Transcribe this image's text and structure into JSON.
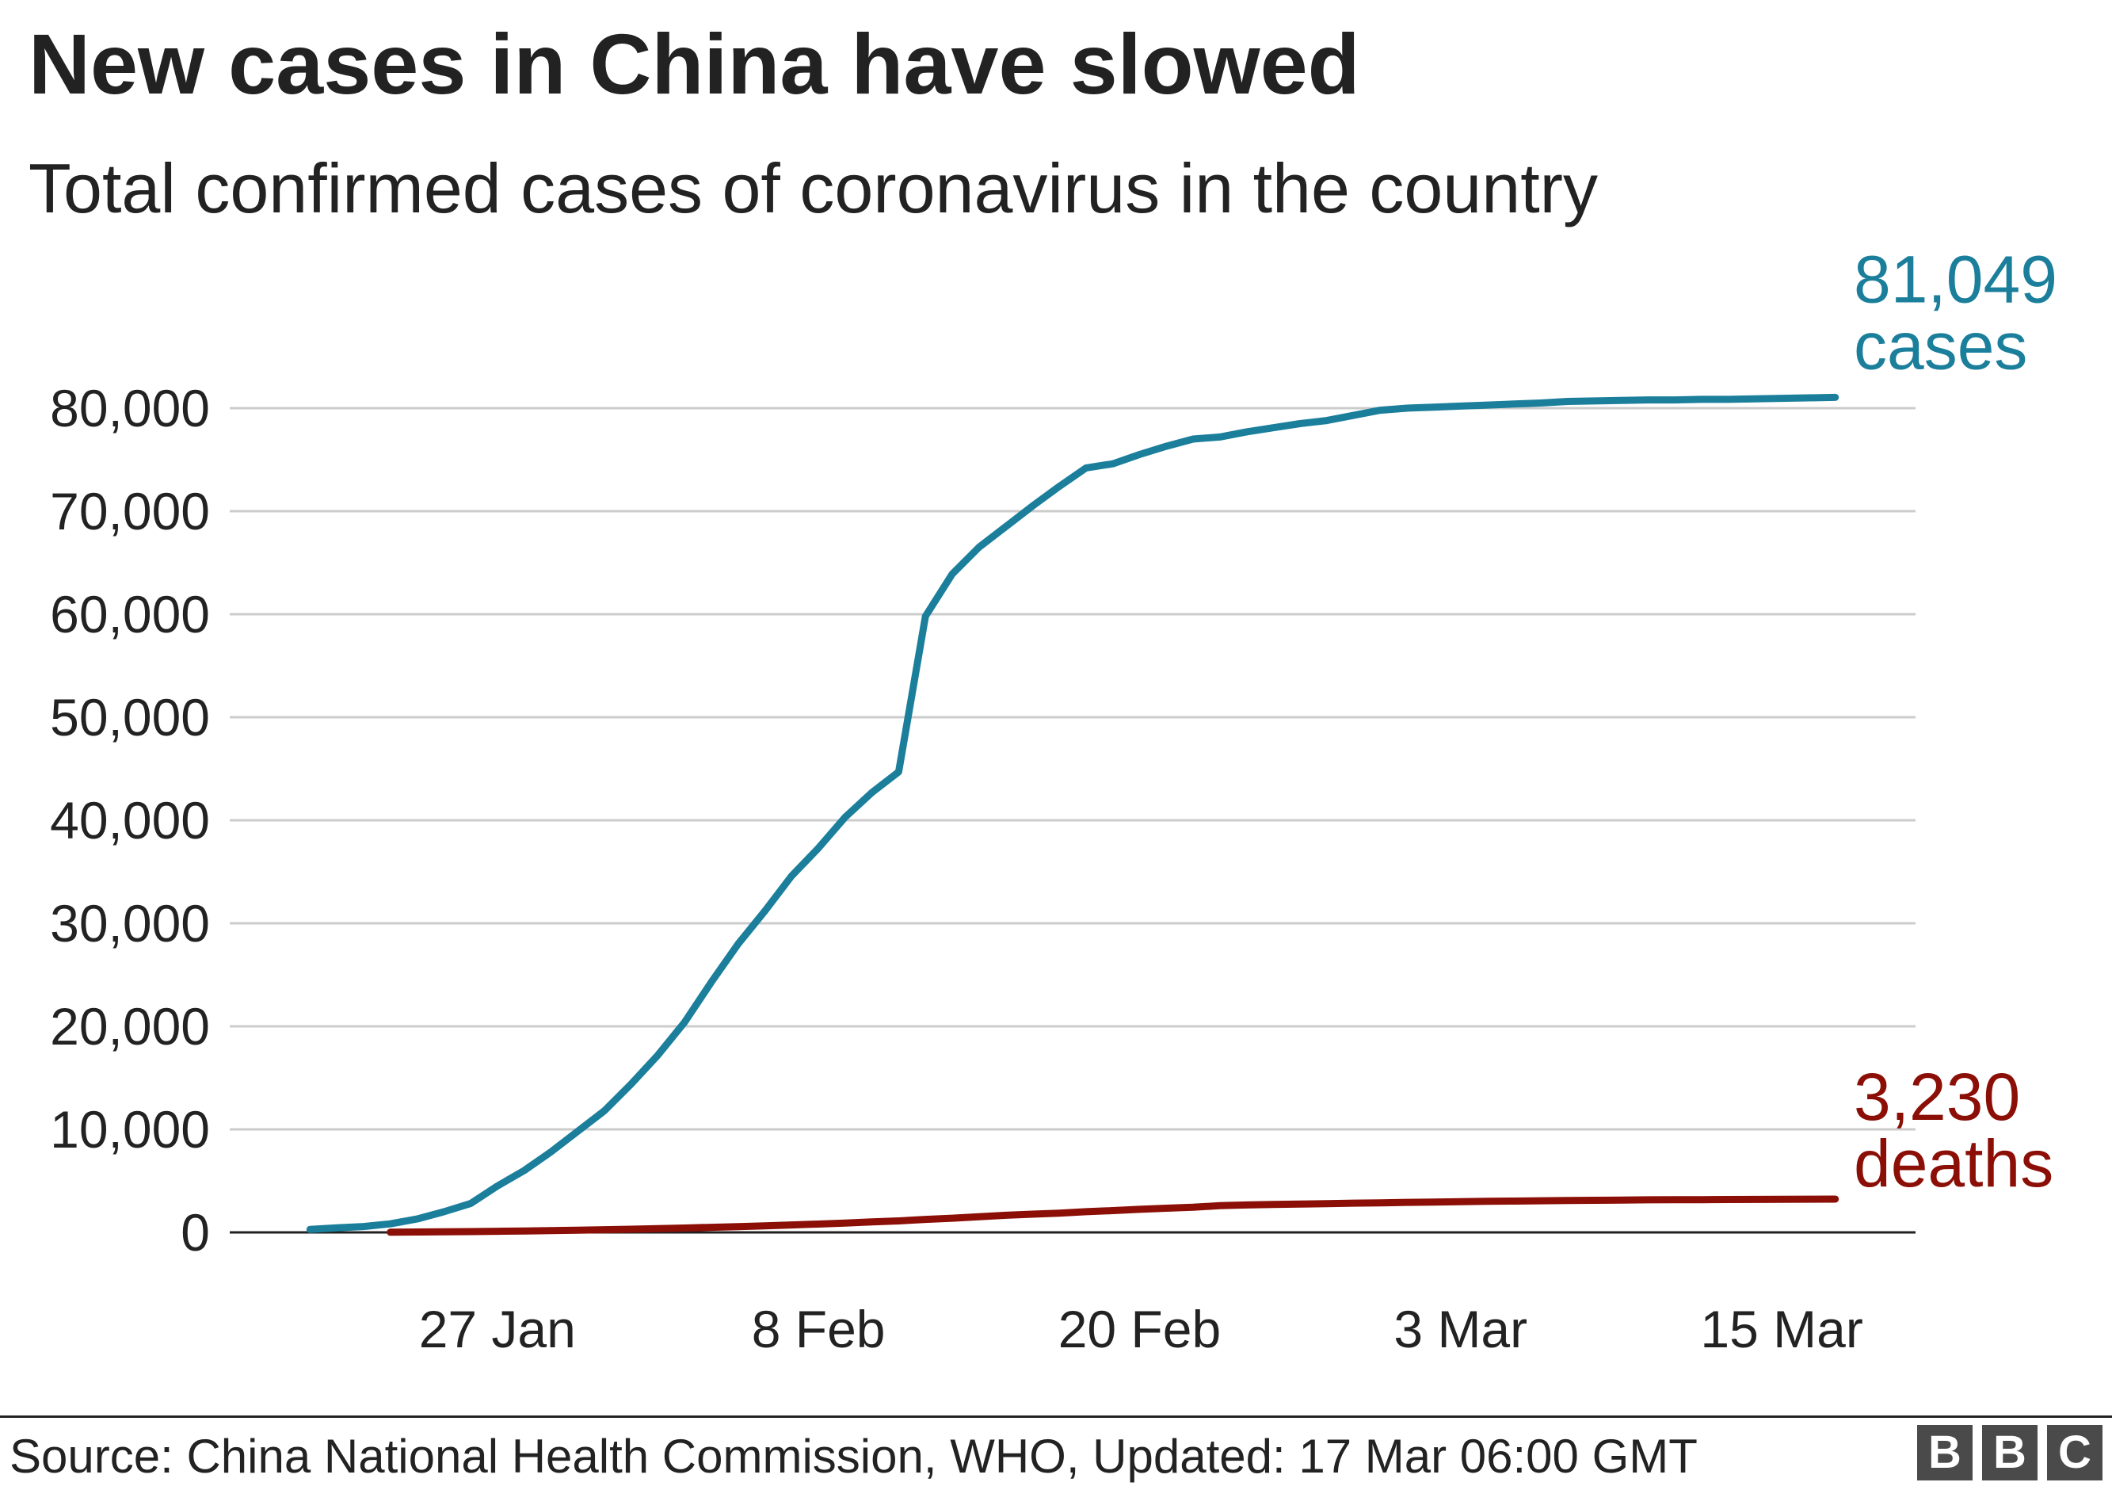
{
  "title": "New cases in China have slowed",
  "subtitle": "Total confirmed cases of coronavirus in the country",
  "source": "Source: China National Health Commission, WHO, Updated: 17 Mar 06:00 GMT",
  "logo": [
    "B",
    "B",
    "C"
  ],
  "colors": {
    "cases": "#1b7f9c",
    "deaths": "#8b0f06",
    "grid": "#cccccc",
    "axis": "#222222"
  },
  "chart_data": {
    "type": "line",
    "xlabel": "",
    "ylabel": "",
    "ylim": [
      0,
      80000
    ],
    "yticks": [
      0,
      10000,
      20000,
      30000,
      40000,
      50000,
      60000,
      70000,
      80000
    ],
    "ytick_labels": [
      "0",
      "10,000",
      "20,000",
      "30,000",
      "40,000",
      "50,000",
      "60,000",
      "70,000",
      "80,000"
    ],
    "xticks": [
      "2020-01-27",
      "2020-02-08",
      "2020-02-20",
      "2020-03-03",
      "2020-03-15"
    ],
    "xtick_labels": [
      "27 Jan",
      "8 Feb",
      "20 Feb",
      "3 Mar",
      "15 Mar"
    ],
    "xlim": [
      "2020-01-17",
      "2020-03-20"
    ],
    "grid": true,
    "series": [
      {
        "key": "cases",
        "end_value": "81,049",
        "end_unit": "cases",
        "x": [
          "2020-01-20",
          "2020-01-21",
          "2020-01-22",
          "2020-01-23",
          "2020-01-24",
          "2020-01-25",
          "2020-01-26",
          "2020-01-27",
          "2020-01-28",
          "2020-01-29",
          "2020-01-30",
          "2020-01-31",
          "2020-02-01",
          "2020-02-02",
          "2020-02-03",
          "2020-02-04",
          "2020-02-05",
          "2020-02-06",
          "2020-02-07",
          "2020-02-08",
          "2020-02-09",
          "2020-02-10",
          "2020-02-11",
          "2020-02-12",
          "2020-02-13",
          "2020-02-14",
          "2020-02-15",
          "2020-02-16",
          "2020-02-17",
          "2020-02-18",
          "2020-02-19",
          "2020-02-20",
          "2020-02-21",
          "2020-02-22",
          "2020-02-23",
          "2020-02-24",
          "2020-02-25",
          "2020-02-26",
          "2020-02-27",
          "2020-02-28",
          "2020-02-29",
          "2020-03-01",
          "2020-03-02",
          "2020-03-03",
          "2020-03-04",
          "2020-03-05",
          "2020-03-06",
          "2020-03-07",
          "2020-03-08",
          "2020-03-09",
          "2020-03-10",
          "2020-03-11",
          "2020-03-12",
          "2020-03-13",
          "2020-03-14",
          "2020-03-15",
          "2020-03-16",
          "2020-03-17"
        ],
        "values": [
          290,
          440,
          570,
          830,
          1300,
          2000,
          2800,
          4500,
          6000,
          7800,
          9800,
          11800,
          14400,
          17200,
          20400,
          24300,
          28000,
          31200,
          34600,
          37300,
          40300,
          42700,
          44700,
          59800,
          63900,
          66500,
          68500,
          70500,
          72400,
          74200,
          74600,
          75500,
          76300,
          77000,
          77200,
          77700,
          78100,
          78500,
          78800,
          79300,
          79800,
          80000,
          80100,
          80200,
          80300,
          80400,
          80500,
          80650,
          80700,
          80750,
          80800,
          80800,
          80850,
          80850,
          80900,
          80950,
          81000,
          81049
        ]
      },
      {
        "key": "deaths",
        "end_value": "3,230",
        "end_unit": "deaths",
        "x": [
          "2020-01-23",
          "2020-01-24",
          "2020-01-25",
          "2020-01-26",
          "2020-01-27",
          "2020-01-28",
          "2020-01-29",
          "2020-01-30",
          "2020-01-31",
          "2020-02-01",
          "2020-02-02",
          "2020-02-03",
          "2020-02-04",
          "2020-02-05",
          "2020-02-06",
          "2020-02-07",
          "2020-02-08",
          "2020-02-09",
          "2020-02-10",
          "2020-02-11",
          "2020-02-12",
          "2020-02-13",
          "2020-02-14",
          "2020-02-15",
          "2020-02-16",
          "2020-02-17",
          "2020-02-18",
          "2020-02-19",
          "2020-02-20",
          "2020-02-21",
          "2020-02-22",
          "2020-02-23",
          "2020-02-24",
          "2020-02-25",
          "2020-02-26",
          "2020-02-27",
          "2020-02-28",
          "2020-02-29",
          "2020-03-01",
          "2020-03-02",
          "2020-03-03",
          "2020-03-04",
          "2020-03-05",
          "2020-03-06",
          "2020-03-07",
          "2020-03-08",
          "2020-03-09",
          "2020-03-10",
          "2020-03-11",
          "2020-03-12",
          "2020-03-13",
          "2020-03-14",
          "2020-03-15",
          "2020-03-16",
          "2020-03-17"
        ],
        "values": [
          17,
          41,
          56,
          80,
          106,
          132,
          170,
          213,
          259,
          304,
          361,
          425,
          490,
          563,
          636,
          722,
          811,
          908,
          1016,
          1113,
          1259,
          1380,
          1523,
          1665,
          1770,
          1868,
          2004,
          2118,
          2236,
          2345,
          2442,
          2592,
          2663,
          2715,
          2744,
          2788,
          2835,
          2870,
          2912,
          2943,
          2981,
          3013,
          3042,
          3070,
          3097,
          3119,
          3136,
          3158,
          3169,
          3176,
          3189,
          3199,
          3213,
          3226,
          3230
        ]
      }
    ]
  }
}
